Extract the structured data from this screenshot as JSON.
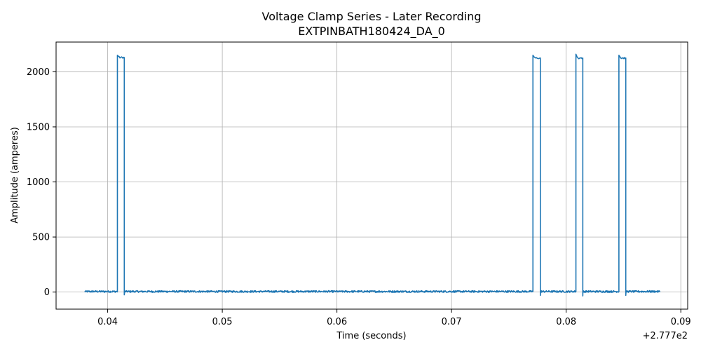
{
  "chart_data": {
    "type": "line",
    "title": "Voltage Clamp Series - Later Recording",
    "subtitle": "EXTPINBATH180424_DA_0",
    "xlabel": "Time (seconds)",
    "ylabel": "Amplitude (amperes)",
    "x_offset_label": "+2.777e2",
    "xlim": [
      0.0355,
      0.0906
    ],
    "ylim": [
      -155,
      2270
    ],
    "grid": true,
    "xticks": [
      0.04,
      0.05,
      0.06,
      0.07,
      0.08,
      0.09
    ],
    "xtick_labels": [
      "0.04",
      "0.05",
      "0.06",
      "0.07",
      "0.08",
      "0.09"
    ],
    "yticks": [
      0,
      500,
      1000,
      1500,
      2000
    ],
    "ytick_labels": [
      "0",
      "500",
      "1000",
      "1500",
      "2000"
    ],
    "series": [
      {
        "color": "#1f77b4",
        "x_range": [
          0.038,
          0.0882
        ],
        "baseline": 5,
        "noise": 8,
        "pulses": [
          {
            "start": 0.04085,
            "end": 0.04145,
            "level": 2130,
            "peak": 2150,
            "undershoot": -25
          },
          {
            "start": 0.0771,
            "end": 0.07775,
            "level": 2125,
            "peak": 2150,
            "undershoot": -30
          },
          {
            "start": 0.08085,
            "end": 0.08145,
            "level": 2125,
            "peak": 2160,
            "undershoot": -35
          },
          {
            "start": 0.0846,
            "end": 0.0852,
            "level": 2125,
            "peak": 2150,
            "undershoot": -30
          }
        ]
      }
    ]
  }
}
